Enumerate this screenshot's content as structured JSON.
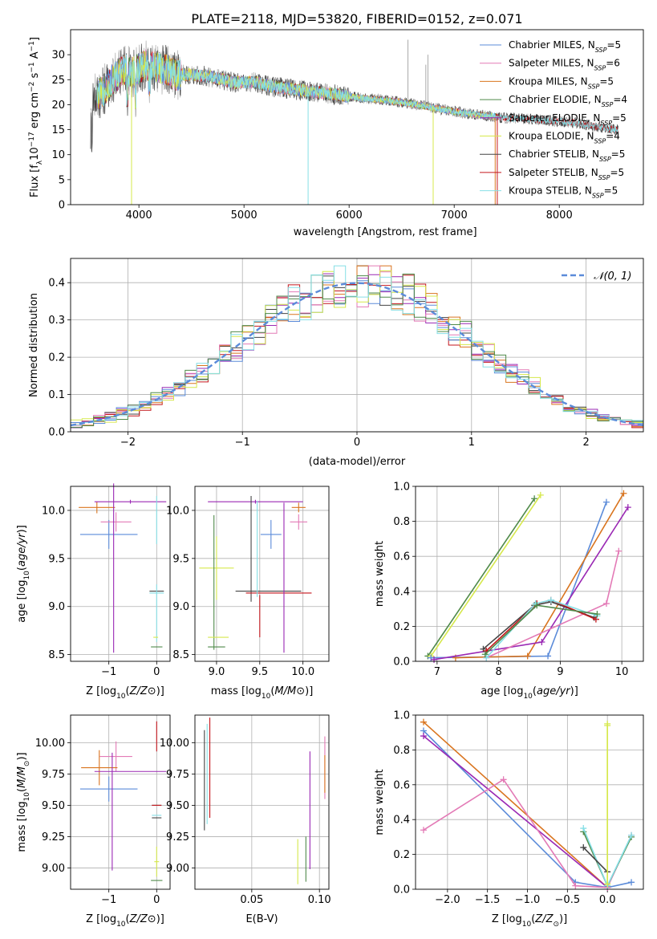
{
  "figure": {
    "title": "PLATE=2118, MJD=53820, FIBERID=0152, z=0.071"
  },
  "colors": {
    "chabrier_miles": "#5b8bd9",
    "salpeter_miles": "#e37ab6",
    "kroupa_miles": "#d9741e",
    "chabrier_elodie": "#4f8a4a",
    "salpeter_elodie": "#9a28b4",
    "kroupa_elodie": "#d6e84c",
    "chabrier_stelib": "#444444",
    "salpeter_stelib": "#c4161c",
    "kroupa_stelib": "#86dfe6",
    "extra_gray": "#aaaaaa",
    "normal_curve": "#5b8bd9",
    "grid": "#b0b0b0"
  },
  "chart_data": [
    {
      "id": "spectrum",
      "type": "line",
      "xlabel": "wavelength [Angstrom, rest frame]",
      "ylabel": "Flux [f_λ10^-17 erg cm^-2 s^-1 A^-1]",
      "xlim": [
        3350,
        8800
      ],
      "ylim": [
        0,
        35
      ],
      "xticks": [
        4000,
        5000,
        6000,
        7000,
        8000
      ],
      "yticks": [
        0,
        5,
        10,
        15,
        20,
        25,
        30
      ],
      "grid": false,
      "legend_position": "top-right",
      "legend": [
        {
          "key": "chabrier_miles",
          "base": "Chabrier MILES, N",
          "sub": "SSP",
          "tail": "=5"
        },
        {
          "key": "salpeter_miles",
          "base": "Salpeter MILES, N",
          "sub": "SSP",
          "tail": "=6"
        },
        {
          "key": "kroupa_miles",
          "base": "Kroupa MILES, N",
          "sub": "SSP",
          "tail": "=5"
        },
        {
          "key": "chabrier_elodie",
          "base": "Chabrier ELODIE, N",
          "sub": "SSP",
          "tail": "=4"
        },
        {
          "key": "salpeter_elodie",
          "base": "Salpeter ELODIE, N",
          "sub": "SSP",
          "tail": "=5"
        },
        {
          "key": "kroupa_elodie",
          "base": "Kroupa ELODIE, N",
          "sub": "SSP",
          "tail": "=4"
        },
        {
          "key": "chabrier_stelib",
          "base": "Chabrier STELIB, N",
          "sub": "SSP",
          "tail": "=5"
        },
        {
          "key": "salpeter_stelib",
          "base": "Salpeter STELIB, N",
          "sub": "SSP",
          "tail": "=5"
        },
        {
          "key": "kroupa_stelib",
          "base": "Kroupa STELIB, N",
          "sub": "SSP",
          "tail": "=5"
        }
      ],
      "continuum": [
        [
          3560,
          21.5
        ],
        [
          3650,
          22.5
        ],
        [
          3750,
          25
        ],
        [
          3850,
          27
        ],
        [
          3950,
          26.5
        ],
        [
          4050,
          28
        ],
        [
          4150,
          27.5
        ],
        [
          4250,
          27
        ],
        [
          4350,
          26
        ],
        [
          4500,
          26
        ],
        [
          4700,
          25.5
        ],
        [
          4900,
          24.5
        ],
        [
          5100,
          24.5
        ],
        [
          5300,
          23.5
        ],
        [
          5500,
          23
        ],
        [
          5700,
          22.5
        ],
        [
          5900,
          22
        ],
        [
          6100,
          21.3
        ],
        [
          6300,
          21
        ],
        [
          6500,
          20.5
        ],
        [
          6700,
          19.8
        ],
        [
          6900,
          19
        ],
        [
          7100,
          18.3
        ],
        [
          7300,
          17.8
        ],
        [
          7500,
          17.3
        ],
        [
          7800,
          17
        ],
        [
          8100,
          16.5
        ],
        [
          8300,
          15.8
        ],
        [
          8550,
          15
        ]
      ],
      "spikes": [
        {
          "x": 3930,
          "y": 0,
          "color_key": "kroupa_elodie"
        },
        {
          "x": 5610,
          "y": 0,
          "color_key": "kroupa_stelib"
        },
        {
          "x": 6800,
          "y": 0,
          "color_key": "kroupa_elodie"
        },
        {
          "x": 7390,
          "y": 0,
          "color_key": "kroupa_miles"
        },
        {
          "x": 7410,
          "y": 0,
          "color_key": "salpeter_stelib"
        },
        {
          "x": 6560,
          "y": 33,
          "color_key": "extra_gray"
        },
        {
          "x": 6730,
          "y": 28,
          "color_key": "extra_gray"
        },
        {
          "x": 6750,
          "y": 30,
          "color_key": "extra_gray"
        }
      ]
    },
    {
      "id": "residuals",
      "type": "step",
      "xlabel": "(data-model)/error",
      "ylabel": "Normed distribution",
      "xlim": [
        -2.5,
        2.5
      ],
      "ylim": [
        0,
        0.465
      ],
      "xticks": [
        -2,
        -1,
        0,
        1,
        2
      ],
      "yticks": [
        0.0,
        0.1,
        0.2,
        0.3,
        0.4
      ],
      "grid": true,
      "legend_position": "top-right",
      "legend_label": "𝒩(0, 1)",
      "bin_width": 0.1,
      "normal": {
        "mean": 0,
        "sigma": 1
      }
    },
    {
      "id": "age_vs_z",
      "type": "errorbar",
      "xlabel": "Z [log10(Z/Z⊙)]",
      "ylabel": "age [log10(age/yr)]",
      "xlim": [
        -1.8,
        0.28
      ],
      "ylim": [
        8.43,
        10.25
      ],
      "xticks": [
        -1,
        0
      ],
      "yticks": [
        8.5,
        9.0,
        9.5,
        10.0
      ],
      "grid": true,
      "points": [
        {
          "x": -1.0,
          "y": 9.75,
          "xerr": 0.6,
          "yerr": 0.15,
          "k": "chabrier_miles"
        },
        {
          "x": -0.85,
          "y": 9.88,
          "xerr": 0.32,
          "yerr": 0.1,
          "k": "salpeter_miles"
        },
        {
          "x": -1.25,
          "y": 10.03,
          "xerr": 0.38,
          "yerr": 0.06,
          "k": "kroupa_miles"
        },
        {
          "x": -0.55,
          "y": 10.09,
          "xerr": 0.75,
          "yerr": 0.02,
          "k": "salpeter_elodie"
        },
        {
          "x": -0.9,
          "y": 9.4,
          "xerr": 0.0,
          "yerr": 0.88,
          "k": "salpeter_elodie"
        },
        {
          "x": 0.0,
          "y": 9.9,
          "xerr": 0.0,
          "yerr": 0.25,
          "k": "kroupa_stelib"
        },
        {
          "x": 0.0,
          "y": 9.16,
          "xerr": 0.15,
          "yerr": 0.0,
          "k": "chabrier_stelib"
        },
        {
          "x": 0.0,
          "y": 9.14,
          "xerr": 0.15,
          "yerr": 0.0,
          "k": "kroupa_stelib"
        },
        {
          "x": 0.0,
          "y": 8.93,
          "xerr": 0.0,
          "yerr": 0.3,
          "k": "kroupa_stelib"
        },
        {
          "x": 0.0,
          "y": 8.58,
          "xerr": 0.12,
          "yerr": 0.0,
          "k": "chabrier_elodie"
        },
        {
          "x": -0.02,
          "y": 8.68,
          "xerr": 0.05,
          "yerr": 0.0,
          "k": "kroupa_elodie"
        }
      ]
    },
    {
      "id": "age_vs_mass",
      "type": "errorbar",
      "xlabel": "mass [log10(M/M⊙)]",
      "ylabel": "",
      "xlim": [
        8.75,
        10.3
      ],
      "ylim": [
        8.43,
        10.25
      ],
      "xticks": [
        9.0,
        9.5,
        10.0
      ],
      "yticks": [
        8.5,
        9.0,
        9.5,
        10.0
      ],
      "grid": true,
      "points": [
        {
          "x": 9.45,
          "y": 10.09,
          "xerr": 0.55,
          "yerr": 0.02,
          "k": "salpeter_elodie"
        },
        {
          "x": 9.0,
          "y": 9.4,
          "xerr": 0.2,
          "yerr": 0.33,
          "k": "kroupa_elodie"
        },
        {
          "x": 8.97,
          "y": 9.25,
          "xerr": 0.0,
          "yerr": 0.7,
          "k": "chabrier_elodie"
        },
        {
          "x": 9.0,
          "y": 8.58,
          "xerr": 0.1,
          "yerr": 0.0,
          "k": "chabrier_elodie"
        },
        {
          "x": 9.02,
          "y": 8.68,
          "xerr": 0.12,
          "yerr": 0.0,
          "k": "kroupa_elodie"
        },
        {
          "x": 9.4,
          "y": 9.6,
          "xerr": 0.0,
          "yerr": 0.55,
          "k": "chabrier_stelib"
        },
        {
          "x": 9.6,
          "y": 9.16,
          "xerr": 0.38,
          "yerr": 0.0,
          "k": "chabrier_stelib"
        },
        {
          "x": 9.72,
          "y": 9.14,
          "xerr": 0.38,
          "yerr": 0.0,
          "k": "salpeter_stelib"
        },
        {
          "x": 9.5,
          "y": 8.9,
          "xerr": 0.0,
          "yerr": 0.22,
          "k": "salpeter_stelib"
        },
        {
          "x": 9.47,
          "y": 9.6,
          "xerr": 0.0,
          "yerr": 0.5,
          "k": "kroupa_stelib"
        },
        {
          "x": 9.63,
          "y": 9.75,
          "xerr": 0.12,
          "yerr": 0.15,
          "k": "chabrier_miles"
        },
        {
          "x": 9.95,
          "y": 9.88,
          "xerr": 0.1,
          "yerr": 0.08,
          "k": "salpeter_miles"
        },
        {
          "x": 9.95,
          "y": 10.03,
          "xerr": 0.08,
          "yerr": 0.05,
          "k": "kroupa_miles"
        },
        {
          "x": 9.78,
          "y": 9.3,
          "xerr": 0.0,
          "yerr": 0.78,
          "k": "salpeter_elodie"
        }
      ]
    },
    {
      "id": "mass_weight_vs_age",
      "type": "line",
      "xlabel": "age [log10(age/yr)]",
      "ylabel": "mass weight",
      "xlim": [
        6.65,
        10.35
      ],
      "ylim": [
        0.0,
        1.0
      ],
      "xticks": [
        7,
        8,
        9,
        10
      ],
      "yticks": [
        0.0,
        0.2,
        0.4,
        0.6,
        0.8,
        1.0
      ],
      "grid": true,
      "series": [
        {
          "k": "chabrier_elodie",
          "x": [
            6.85,
            8.58
          ],
          "y": [
            0.03,
            0.93
          ]
        },
        {
          "k": "kroupa_elodie",
          "x": [
            6.9,
            8.68
          ],
          "y": [
            0.03,
            0.95
          ]
        },
        {
          "k": "chabrier_miles",
          "x": [
            6.9,
            8.8,
            9.75
          ],
          "y": [
            0.02,
            0.03,
            0.91
          ]
        },
        {
          "k": "kroupa_miles",
          "x": [
            7.3,
            8.47,
            10.03
          ],
          "y": [
            0.02,
            0.03,
            0.96
          ]
        },
        {
          "k": "salpeter_elodie",
          "x": [
            6.95,
            8.7,
            10.1
          ],
          "y": [
            0.01,
            0.11,
            0.88
          ]
        },
        {
          "k": "salpeter_miles",
          "x": [
            7.8,
            9.75,
            9.95
          ],
          "y": [
            0.02,
            0.33,
            0.63
          ]
        },
        {
          "k": "chabrier_stelib",
          "x": [
            7.75,
            8.58,
            8.85,
            9.55
          ],
          "y": [
            0.07,
            0.32,
            0.34,
            0.25
          ]
        },
        {
          "k": "salpeter_stelib",
          "x": [
            7.8,
            8.62,
            8.85,
            9.58
          ],
          "y": [
            0.06,
            0.33,
            0.35,
            0.24
          ]
        },
        {
          "k": "kroupa_stelib",
          "x": [
            7.8,
            8.6,
            8.85,
            9.6
          ],
          "y": [
            0.02,
            0.33,
            0.35,
            0.26
          ]
        },
        {
          "k": "chabrier_elodie",
          "x": [
            7.78,
            8.62,
            9.6
          ],
          "y": [
            0.04,
            0.32,
            0.27
          ]
        }
      ]
    },
    {
      "id": "mass_vs_z",
      "type": "errorbar",
      "xlabel": "Z [log10(Z/Z⊙)]",
      "ylabel": "mass [log10(M/M⊙)]",
      "xlim": [
        -1.8,
        0.28
      ],
      "ylim": [
        8.83,
        10.22
      ],
      "xticks": [
        -1,
        0
      ],
      "yticks": [
        9.0,
        9.25,
        9.5,
        9.75,
        10.0
      ],
      "grid": true,
      "points": [
        {
          "x": -1.0,
          "y": 9.63,
          "xerr": 0.6,
          "yerr": 0.1,
          "k": "chabrier_miles"
        },
        {
          "x": -0.85,
          "y": 9.89,
          "xerr": 0.34,
          "yerr": 0.12,
          "k": "salpeter_miles"
        },
        {
          "x": -1.2,
          "y": 9.8,
          "xerr": 0.38,
          "yerr": 0.14,
          "k": "kroupa_miles"
        },
        {
          "x": -0.55,
          "y": 9.77,
          "xerr": 0.75,
          "yerr": 0.0,
          "k": "salpeter_elodie"
        },
        {
          "x": -0.93,
          "y": 9.45,
          "xerr": 0.0,
          "yerr": 0.47,
          "k": "salpeter_elodie"
        },
        {
          "x": 0.0,
          "y": 9.5,
          "xerr": 0.1,
          "yerr": 0.0,
          "k": "chabrier_stelib"
        },
        {
          "x": 0.0,
          "y": 9.4,
          "xerr": 0.1,
          "yerr": 0.0,
          "k": "chabrier_stelib"
        },
        {
          "x": 0.0,
          "y": 9.42,
          "xerr": 0.1,
          "yerr": 0.0,
          "k": "kroupa_stelib"
        },
        {
          "x": 0.0,
          "y": 9.5,
          "xerr": 0.1,
          "yerr": 0.0,
          "k": "salpeter_stelib"
        },
        {
          "x": 0.0,
          "y": 10.05,
          "xerr": 0.0,
          "yerr": 0.12,
          "k": "salpeter_stelib"
        },
        {
          "x": 0.0,
          "y": 9.05,
          "xerr": 0.05,
          "yerr": 0.12,
          "k": "kroupa_elodie"
        },
        {
          "x": 0.0,
          "y": 8.9,
          "xerr": 0.12,
          "yerr": 0.0,
          "k": "chabrier_elodie"
        }
      ]
    },
    {
      "id": "mass_vs_ebv",
      "type": "errorbar",
      "xlabel": "E(B-V)",
      "ylabel": "",
      "xlim": [
        0.008,
        0.107
      ],
      "ylim": [
        8.83,
        10.22
      ],
      "xticks": [
        0.05,
        0.1
      ],
      "yticks": [
        9.0,
        9.25,
        9.5,
        9.75,
        10.0
      ],
      "grid": true,
      "points": [
        {
          "x": 0.015,
          "y": 9.7,
          "xerr": 0.0,
          "yerr": 0.4,
          "k": "chabrier_stelib"
        },
        {
          "x": 0.017,
          "y": 9.75,
          "xerr": 0.0,
          "yerr": 0.4,
          "k": "kroupa_stelib"
        },
        {
          "x": 0.019,
          "y": 9.8,
          "xerr": 0.0,
          "yerr": 0.4,
          "k": "salpeter_stelib"
        },
        {
          "x": 0.084,
          "y": 9.05,
          "xerr": 0.0,
          "yerr": 0.18,
          "k": "kroupa_elodie"
        },
        {
          "x": 0.09,
          "y": 9.07,
          "xerr": 0.0,
          "yerr": 0.18,
          "k": "chabrier_elodie"
        },
        {
          "x": 0.093,
          "y": 9.46,
          "xerr": 0.0,
          "yerr": 0.47,
          "k": "salpeter_elodie"
        },
        {
          "x": 0.104,
          "y": 9.8,
          "xerr": 0.0,
          "yerr": 0.25,
          "k": "salpeter_miles"
        },
        {
          "x": 0.104,
          "y": 9.75,
          "xerr": 0.0,
          "yerr": 0.15,
          "k": "kroupa_miles"
        }
      ]
    },
    {
      "id": "mass_weight_vs_z",
      "type": "line",
      "xlabel": "Z [log10(Z/Z⊙)]",
      "ylabel": "mass weight",
      "xlim": [
        -2.4,
        0.45
      ],
      "ylim": [
        0.0,
        1.0
      ],
      "xticks": [
        -2.0,
        -1.5,
        -1.0,
        -0.5,
        0.0
      ],
      "yticks": [
        0.0,
        0.2,
        0.4,
        0.6,
        0.8,
        1.0
      ],
      "grid": true,
      "series": [
        {
          "k": "chabrier_miles",
          "x": [
            -2.3,
            -0.4,
            0.0,
            0.3
          ],
          "y": [
            0.91,
            0.04,
            0.01,
            0.04
          ]
        },
        {
          "k": "kroupa_miles",
          "x": [
            -2.3,
            0.0
          ],
          "y": [
            0.96,
            0.01
          ]
        },
        {
          "k": "salpeter_elodie",
          "x": [
            -2.3,
            0.0
          ],
          "y": [
            0.88,
            0.01
          ]
        },
        {
          "k": "salpeter_miles",
          "x": [
            -2.3,
            -1.3,
            -0.4,
            0.0,
            0.3
          ],
          "y": [
            0.34,
            0.63,
            0.02,
            0.01,
            0.31
          ]
        },
        {
          "k": "chabrier_elodie",
          "x": [
            -0.3,
            0.0,
            0.3
          ],
          "y": [
            0.33,
            0.02,
            0.3
          ]
        },
        {
          "k": "kroupa_stelib",
          "x": [
            -0.3,
            0.0,
            0.3
          ],
          "y": [
            0.35,
            0.02,
            0.31
          ]
        },
        {
          "k": "chabrier_stelib",
          "x": [
            -0.3,
            0.0
          ],
          "y": [
            0.24,
            0.1
          ]
        },
        {
          "k": "kroupa_elodie",
          "x": [
            0.0,
            0.0
          ],
          "y": [
            0.03,
            0.95
          ]
        },
        {
          "k": "kroupa_elodie",
          "x": [
            0.0,
            0.0
          ],
          "y": [
            0.03,
            0.94
          ]
        }
      ]
    }
  ]
}
